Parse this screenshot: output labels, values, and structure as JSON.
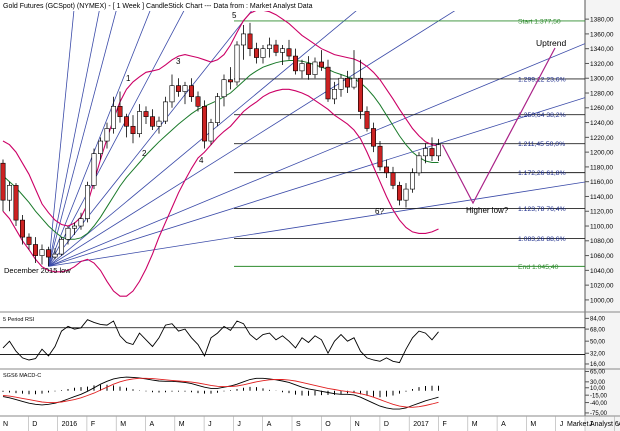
{
  "header": {
    "title": "Gold Futures (GCSpot) (NYMEX) -  [ 1 Week ] CandleStick Chart --- Data from : Market Analyst Data"
  },
  "colors": {
    "bollinger": "#cc0066",
    "ma": "#1a7a2a",
    "fan": "#3a4aa8",
    "fib_line": "#222222",
    "fib_text": "#1a2a8a",
    "start_end": "#2e8b2e",
    "up_candle": "#ffffff",
    "down_candle": "#cc2222",
    "projection": "#aa2288",
    "macd_signal": "#e02020"
  },
  "chart_data": [
    {
      "type": "candlestick",
      "panel": "price",
      "y_ticks": [
        1000,
        1020,
        1040,
        1060,
        1080,
        1100,
        1120,
        1140,
        1160,
        1180,
        1200,
        1220,
        1240,
        1260,
        1280,
        1300,
        1320,
        1340,
        1360,
        1380
      ],
      "y_tick_labels": [
        "1000,00",
        "1020,00",
        "1040,00",
        "1060,00",
        "1080,00",
        "1100,00",
        "1120,00",
        "1140,00",
        "1160,00",
        "1180,00",
        "1200,00",
        "1220,00",
        "1240,00",
        "1260,00",
        "1280,00",
        "1300,00",
        "1320,00",
        "1340,00",
        "1360,00",
        "1380,00"
      ],
      "ylim": [
        985,
        1391
      ],
      "x_months": [
        "N",
        "D",
        "2016",
        "F",
        "M",
        "A",
        "M",
        "J",
        "J",
        "A",
        "S",
        "O",
        "N",
        "D",
        "2017",
        "F",
        "M",
        "A",
        "M",
        "J",
        "J",
        "A"
      ],
      "ohlc": [
        [
          1185,
          1190,
          1120,
          1135
        ],
        [
          1135,
          1160,
          1120,
          1155
        ],
        [
          1155,
          1158,
          1100,
          1108
        ],
        [
          1108,
          1115,
          1075,
          1085
        ],
        [
          1085,
          1090,
          1068,
          1075
        ],
        [
          1075,
          1085,
          1050,
          1060
        ],
        [
          1060,
          1075,
          1048,
          1068
        ],
        [
          1068,
          1072,
          1046,
          1058
        ],
        [
          1058,
          1070,
          1055,
          1062
        ],
        [
          1062,
          1085,
          1060,
          1082
        ],
        [
          1082,
          1100,
          1075,
          1097
        ],
        [
          1097,
          1105,
          1088,
          1100
        ],
        [
          1100,
          1118,
          1095,
          1110
        ],
        [
          1110,
          1160,
          1105,
          1155
        ],
        [
          1155,
          1205,
          1150,
          1198
        ],
        [
          1198,
          1220,
          1190,
          1215
        ],
        [
          1215,
          1240,
          1205,
          1232
        ],
        [
          1232,
          1275,
          1225,
          1262
        ],
        [
          1262,
          1282,
          1240,
          1248
        ],
        [
          1248,
          1252,
          1220,
          1235
        ],
        [
          1235,
          1250,
          1212,
          1225
        ],
        [
          1225,
          1265,
          1220,
          1255
        ],
        [
          1255,
          1262,
          1238,
          1248
        ],
        [
          1248,
          1258,
          1230,
          1235
        ],
        [
          1235,
          1248,
          1225,
          1242
        ],
        [
          1242,
          1275,
          1238,
          1268
        ],
        [
          1268,
          1305,
          1260,
          1290
        ],
        [
          1290,
          1300,
          1275,
          1282
        ],
        [
          1282,
          1295,
          1265,
          1290
        ],
        [
          1290,
          1300,
          1268,
          1275
        ],
        [
          1275,
          1282,
          1255,
          1262
        ],
        [
          1262,
          1270,
          1205,
          1215
        ],
        [
          1215,
          1245,
          1210,
          1240
        ],
        [
          1240,
          1280,
          1235,
          1275
        ],
        [
          1275,
          1305,
          1262,
          1298
        ],
        [
          1298,
          1315,
          1285,
          1295
        ],
        [
          1295,
          1350,
          1290,
          1345
        ],
        [
          1345,
          1372,
          1325,
          1360
        ],
        [
          1360,
          1375,
          1330,
          1340
        ],
        [
          1340,
          1348,
          1320,
          1328
        ],
        [
          1328,
          1345,
          1320,
          1340
        ],
        [
          1340,
          1355,
          1328,
          1345
        ],
        [
          1345,
          1352,
          1330,
          1335
        ],
        [
          1335,
          1345,
          1318,
          1340
        ],
        [
          1340,
          1352,
          1325,
          1330
        ],
        [
          1330,
          1340,
          1305,
          1310
        ],
        [
          1310,
          1325,
          1300,
          1320
        ],
        [
          1320,
          1330,
          1298,
          1305
        ],
        [
          1305,
          1328,
          1300,
          1322
        ],
        [
          1322,
          1338,
          1310,
          1315
        ],
        [
          1315,
          1325,
          1268,
          1272
        ],
        [
          1272,
          1295,
          1265,
          1285
        ],
        [
          1285,
          1305,
          1275,
          1300
        ],
        [
          1300,
          1310,
          1280,
          1288
        ],
        [
          1288,
          1338,
          1285,
          1300
        ],
        [
          1300,
          1325,
          1245,
          1255
        ],
        [
          1255,
          1262,
          1228,
          1232
        ],
        [
          1232,
          1240,
          1200,
          1208
        ],
        [
          1208,
          1215,
          1175,
          1180
        ],
        [
          1180,
          1190,
          1165,
          1172
        ],
        [
          1172,
          1180,
          1150,
          1155
        ],
        [
          1155,
          1160,
          1128,
          1135
        ],
        [
          1135,
          1158,
          1125,
          1150
        ],
        [
          1150,
          1178,
          1145,
          1172
        ],
        [
          1172,
          1200,
          1168,
          1195
        ],
        [
          1195,
          1212,
          1185,
          1205
        ],
        [
          1205,
          1220,
          1188,
          1195
        ],
        [
          1195,
          1218,
          1188,
          1210
        ]
      ],
      "overlays": {
        "bollinger_upper": [
          1215,
          1210,
          1200,
          1185,
          1170,
          1150,
          1130,
          1118,
          1108,
          1102,
          1100,
          1104,
          1112,
          1130,
          1160,
          1190,
          1218,
          1245,
          1268,
          1285,
          1295,
          1302,
          1308,
          1310,
          1312,
          1318,
          1325,
          1330,
          1332,
          1330,
          1328,
          1325,
          1322,
          1325,
          1332,
          1345,
          1362,
          1378,
          1388,
          1392,
          1392,
          1390,
          1386,
          1380,
          1374,
          1366,
          1358,
          1352,
          1346,
          1340,
          1336,
          1332,
          1330,
          1328,
          1326,
          1322,
          1316,
          1308,
          1298,
          1285,
          1272,
          1258,
          1245,
          1232,
          1222,
          1214,
          1210,
          1208
        ],
        "bollinger_lower": [
          1120,
          1110,
          1095,
          1080,
          1068,
          1055,
          1045,
          1040,
          1038,
          1038,
          1040,
          1045,
          1052,
          1055,
          1050,
          1040,
          1025,
          1012,
          1005,
          1005,
          1012,
          1025,
          1042,
          1062,
          1085,
          1105,
          1125,
          1145,
          1162,
          1178,
          1192,
          1200,
          1210,
          1220,
          1228,
          1235,
          1245,
          1255,
          1262,
          1268,
          1275,
          1280,
          1283,
          1285,
          1285,
          1283,
          1280,
          1276,
          1270,
          1264,
          1258,
          1250,
          1244,
          1238,
          1230,
          1218,
          1200,
          1180,
          1160,
          1140,
          1122,
          1108,
          1098,
          1092,
          1090,
          1090,
          1092,
          1096
        ],
        "moving_average": [
          1168,
          1160,
          1152,
          1142,
          1132,
          1120,
          1110,
          1100,
          1092,
          1085,
          1082,
          1082,
          1084,
          1090,
          1100,
          1112,
          1126,
          1140,
          1154,
          1166,
          1176,
          1186,
          1196,
          1205,
          1214,
          1222,
          1230,
          1238,
          1245,
          1252,
          1258,
          1262,
          1266,
          1270,
          1275,
          1280,
          1288,
          1296,
          1304,
          1310,
          1315,
          1318,
          1321,
          1323,
          1324,
          1324,
          1323,
          1321,
          1318,
          1315,
          1312,
          1308,
          1305,
          1302,
          1299,
          1294,
          1286,
          1276,
          1264,
          1250,
          1236,
          1222,
          1210,
          1200,
          1193,
          1188,
          1186,
          1186
        ]
      },
      "fib_levels": [
        {
          "label": "Start 1.377,50",
          "value": 1377.5,
          "kind": "end"
        },
        {
          "label": "1.299,12 23,6%",
          "value": 1299.12,
          "kind": "fib"
        },
        {
          "label": "1.250,64 38,2%",
          "value": 1250.64,
          "kind": "fib"
        },
        {
          "label": "1.211,45 50,0%",
          "value": 1211.45,
          "kind": "fib"
        },
        {
          "label": "1.172,26 61,8%",
          "value": 1172.26,
          "kind": "fib"
        },
        {
          "label": "1.123,78 76,4%",
          "value": 1123.78,
          "kind": "fib"
        },
        {
          "label": "1.083,26 88,6%",
          "value": 1083.26,
          "kind": "fib"
        },
        {
          "label": "End 1.045,40",
          "value": 1045.4,
          "kind": "end"
        }
      ],
      "annotations": [
        {
          "text": "Uptrend"
        },
        {
          "text": "Higher low?"
        },
        {
          "text": "December 2015 low"
        },
        {
          "text": "5"
        },
        {
          "text": "3"
        },
        {
          "text": "1"
        },
        {
          "text": "2"
        },
        {
          "text": "4"
        },
        {
          "text": "6?"
        }
      ]
    },
    {
      "type": "line",
      "panel": "rsi",
      "title": "5 Period RSI",
      "y_ticks": [
        16,
        32,
        50,
        68,
        84
      ],
      "y_tick_labels": [
        "16,00",
        "32,00",
        "50,00",
        "68,00",
        "84,00"
      ],
      "ylim": [
        10,
        92
      ],
      "levels": [
        70,
        30
      ],
      "values": [
        40,
        50,
        35,
        25,
        22,
        24,
        38,
        28,
        42,
        65,
        72,
        68,
        70,
        82,
        78,
        75,
        74,
        80,
        58,
        48,
        45,
        62,
        52,
        42,
        55,
        74,
        76,
        65,
        68,
        55,
        45,
        28,
        55,
        62,
        72,
        66,
        80,
        76,
        60,
        52,
        60,
        62,
        52,
        58,
        50,
        40,
        55,
        48,
        58,
        52,
        32,
        50,
        60,
        50,
        55,
        35,
        25,
        22,
        20,
        25,
        20,
        18,
        38,
        55,
        65,
        62,
        52,
        64
      ]
    },
    {
      "type": "bar",
      "panel": "macd",
      "title": "SGS6 MACD-C",
      "y_ticks": [
        -75,
        -40,
        -15,
        10,
        30,
        65
      ],
      "y_tick_labels": [
        "-75,00",
        "-40,00",
        "-15,00",
        "10,00",
        "30,00",
        "65,00"
      ],
      "ylim": [
        -82,
        70
      ],
      "macd": [
        -20,
        -24,
        -30,
        -36,
        -42,
        -46,
        -48,
        -46,
        -42,
        -36,
        -28,
        -20,
        -12,
        -2,
        10,
        22,
        32,
        40,
        44,
        46,
        45,
        43,
        40,
        36,
        33,
        32,
        32,
        30,
        28,
        24,
        18,
        12,
        8,
        8,
        12,
        16,
        22,
        30,
        38,
        42,
        42,
        40,
        37,
        33,
        28,
        20,
        12,
        6,
        2,
        -2,
        -6,
        -10,
        -12,
        -12,
        -14,
        -22,
        -32,
        -42,
        -52,
        -58,
        -62,
        -62,
        -58,
        -50,
        -42,
        -34,
        -28,
        -22
      ],
      "signal": [
        -16,
        -18,
        -22,
        -26,
        -30,
        -34,
        -38,
        -40,
        -40,
        -38,
        -34,
        -30,
        -24,
        -16,
        -8,
        2,
        12,
        22,
        30,
        36,
        40,
        42,
        42,
        41,
        39,
        37,
        35,
        33,
        31,
        29,
        26,
        22,
        18,
        15,
        14,
        14,
        16,
        20,
        25,
        30,
        34,
        37,
        38,
        38,
        36,
        33,
        28,
        23,
        18,
        13,
        8,
        4,
        0,
        -3,
        -6,
        -10,
        -15,
        -22,
        -30,
        -38,
        -46,
        -52,
        -55,
        -56,
        -54,
        -50,
        -45,
        -39
      ]
    }
  ],
  "x_axis_labels": [
    "N",
    "D",
    "2016",
    "F",
    "M",
    "A",
    "M",
    "J",
    "J",
    "A",
    "S",
    "O",
    "N",
    "D",
    "2017",
    "F",
    "M",
    "A",
    "M",
    "J",
    "J",
    "A"
  ],
  "footer": {
    "copyright": "Market Analyst 6"
  }
}
